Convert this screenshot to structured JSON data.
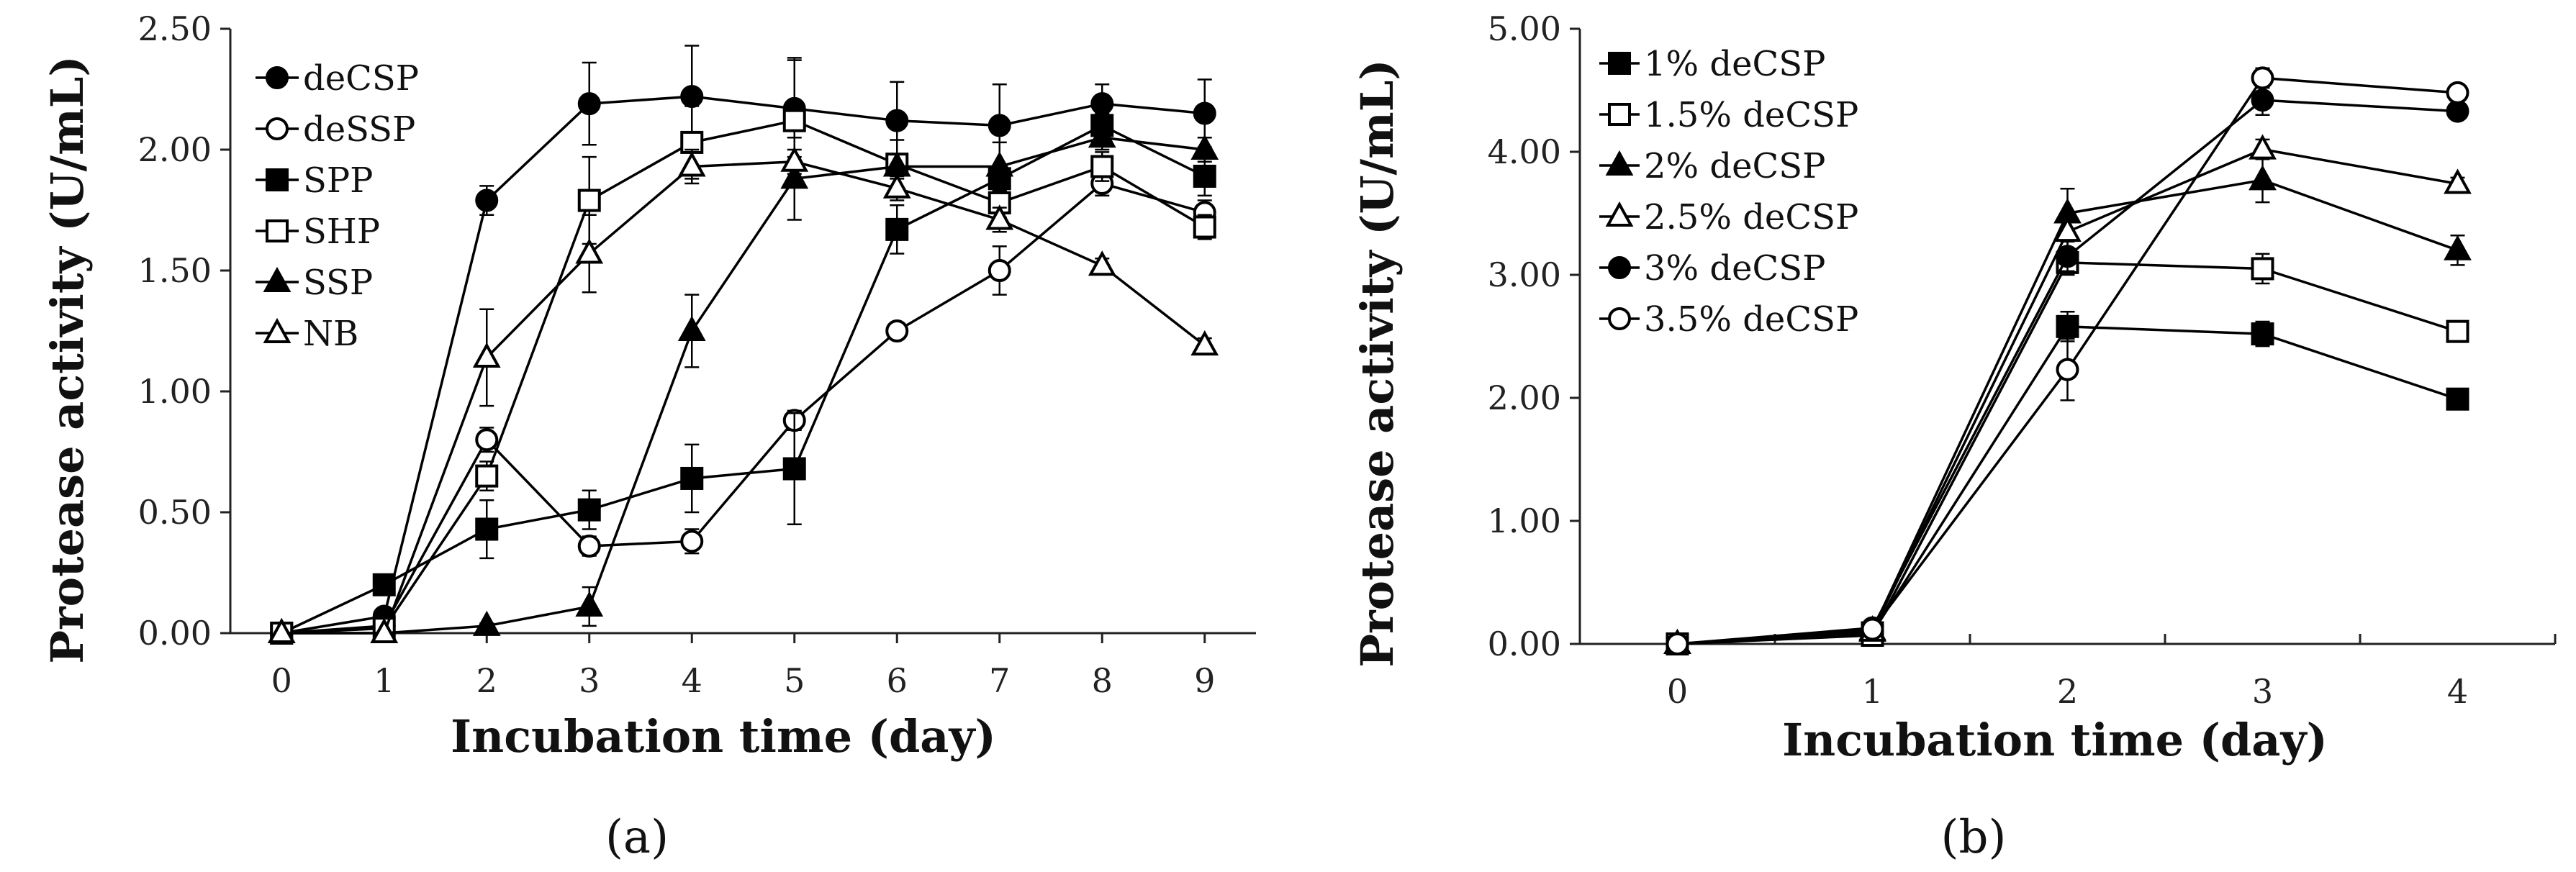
{
  "chart_data": [
    {
      "type": "line",
      "panel_label": "(a)",
      "title": "",
      "xlabel": "Incubation time (day)",
      "ylabel": "Protease activity (U/mL)",
      "x": [
        0,
        1,
        2,
        3,
        4,
        5,
        6,
        7,
        8,
        9
      ],
      "xticks": [
        "0",
        "1",
        "2",
        "3",
        "4",
        "5",
        "6",
        "7",
        "8",
        "9"
      ],
      "xlim": [
        -0.5,
        9.5
      ],
      "ylim": [
        0,
        2.5
      ],
      "yticks": [
        "0.00",
        "0.50",
        "1.00",
        "1.50",
        "2.00",
        "2.50"
      ],
      "ytick_values": [
        0,
        0.5,
        1.0,
        1.5,
        2.0,
        2.5
      ],
      "legend_position": "top-left",
      "series": [
        {
          "name": "deCSP",
          "marker": "circle",
          "fill": "filled",
          "values": [
            0.0,
            0.07,
            1.79,
            2.19,
            2.22,
            2.17,
            2.12,
            2.1,
            2.19,
            2.15
          ],
          "errors": [
            0.0,
            0.02,
            0.06,
            0.17,
            0.21,
            0.2,
            0.16,
            0.17,
            0.08,
            0.14
          ]
        },
        {
          "name": "deSSP",
          "marker": "circle",
          "fill": "open",
          "values": [
            0.0,
            0.03,
            0.8,
            0.36,
            0.38,
            0.88,
            1.25,
            1.5,
            1.86,
            1.74
          ],
          "errors": [
            0.0,
            0.01,
            0.05,
            0.04,
            0.05,
            0.04,
            0.03,
            0.1,
            0.05,
            0.05
          ]
        },
        {
          "name": "SPP",
          "marker": "square",
          "fill": "filled",
          "values": [
            0.0,
            0.2,
            0.43,
            0.51,
            0.64,
            0.68,
            1.67,
            1.88,
            2.1,
            1.89
          ],
          "errors": [
            0.0,
            0.03,
            0.12,
            0.08,
            0.14,
            0.23,
            0.1,
            0.05,
            0.05,
            0.08
          ]
        },
        {
          "name": "SHP",
          "marker": "square",
          "fill": "open",
          "values": [
            0.0,
            0.02,
            0.65,
            1.79,
            2.03,
            2.12,
            1.94,
            1.78,
            1.93,
            1.68
          ],
          "errors": [
            0.0,
            0.01,
            0.06,
            0.18,
            0.15,
            0.26,
            0.1,
            0.06,
            0.06,
            0.05
          ]
        },
        {
          "name": "SSP",
          "marker": "triangle",
          "fill": "filled",
          "values": [
            0.0,
            0.0,
            0.03,
            0.11,
            1.25,
            1.88,
            1.93,
            1.93,
            2.05,
            2.0
          ],
          "errors": [
            0.0,
            0.0,
            0.01,
            0.08,
            0.15,
            0.17,
            0.05,
            0.1,
            0.05,
            0.05
          ]
        },
        {
          "name": "NB",
          "marker": "triangle",
          "fill": "open",
          "values": [
            0.0,
            0.0,
            1.14,
            1.57,
            1.93,
            1.95,
            1.84,
            1.71,
            1.52,
            1.19
          ],
          "errors": [
            0.0,
            0.0,
            0.2,
            0.16,
            0.07,
            0.05,
            0.05,
            0.05,
            0.03,
            0.03
          ]
        }
      ]
    },
    {
      "type": "line",
      "panel_label": "(b)",
      "title": "",
      "xlabel": "Incubation time (day)",
      "ylabel": "Protease activity (U/mL)",
      "x": [
        0,
        1,
        2,
        3,
        4
      ],
      "xticks": [
        "0",
        "1",
        "2",
        "3",
        "4"
      ],
      "xlim": [
        -0.5,
        4.5
      ],
      "ylim": [
        0,
        5
      ],
      "yticks": [
        "0.00",
        "1.00",
        "2.00",
        "3.00",
        "4.00",
        "5.00"
      ],
      "ytick_values": [
        0,
        1,
        2,
        3,
        4,
        5
      ],
      "legend_position": "top-left",
      "series": [
        {
          "name": "1% deCSP",
          "marker": "square",
          "fill": "filled",
          "values": [
            0.0,
            0.09,
            2.58,
            2.52,
            1.99
          ],
          "errors": [
            0.0,
            0.02,
            0.12,
            0.1,
            0.03
          ]
        },
        {
          "name": "1.5% deCSP",
          "marker": "square",
          "fill": "open",
          "values": [
            0.0,
            0.07,
            3.1,
            3.05,
            2.54
          ],
          "errors": [
            0.0,
            0.02,
            0.1,
            0.12,
            0.04
          ]
        },
        {
          "name": "2% deCSP",
          "marker": "triangle",
          "fill": "filled",
          "values": [
            0.0,
            0.11,
            3.5,
            3.77,
            3.2
          ],
          "errors": [
            0.0,
            0.02,
            0.2,
            0.18,
            0.12
          ]
        },
        {
          "name": "2.5% deCSP",
          "marker": "triangle",
          "fill": "open",
          "values": [
            0.0,
            0.1,
            3.35,
            4.02,
            3.74
          ],
          "errors": [
            0.0,
            0.02,
            0.15,
            0.08,
            0.05
          ]
        },
        {
          "name": "3% deCSP",
          "marker": "circle",
          "fill": "filled",
          "values": [
            0.0,
            0.13,
            3.15,
            4.42,
            4.33
          ],
          "errors": [
            0.0,
            0.02,
            0.12,
            0.12,
            0.05
          ]
        },
        {
          "name": "3.5% deCSP",
          "marker": "circle",
          "fill": "open",
          "values": [
            0.0,
            0.12,
            2.23,
            4.6,
            4.48
          ],
          "errors": [
            0.0,
            0.02,
            0.25,
            0.08,
            0.05
          ]
        }
      ]
    }
  ]
}
